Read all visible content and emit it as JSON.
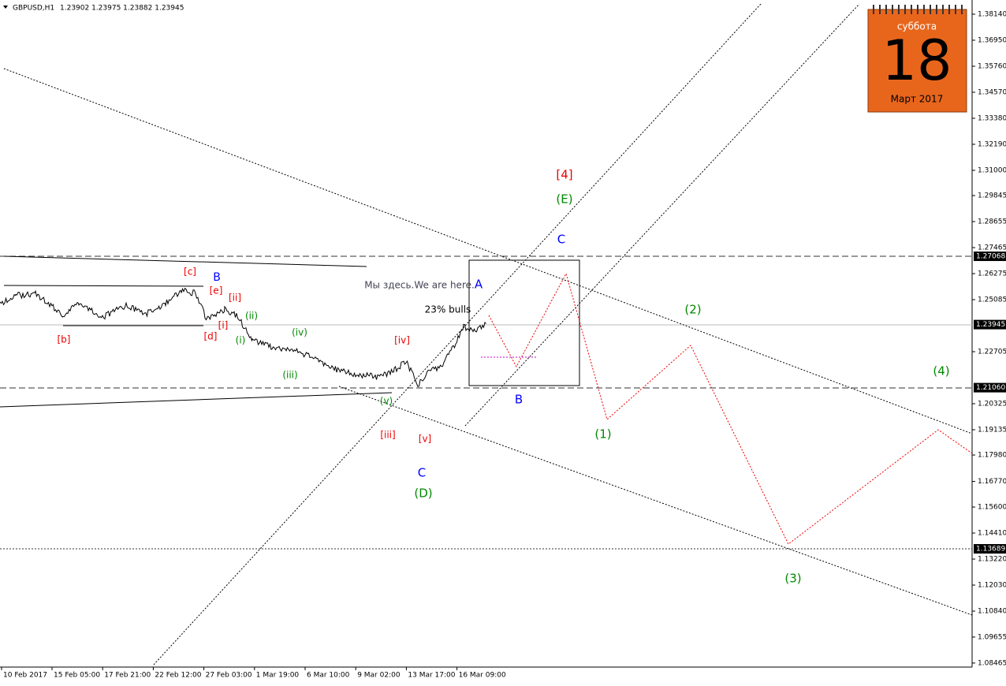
{
  "header": {
    "symbol": "GBPUSD,H1",
    "ohlc": "1.23902 1.23975 1.23882 1.23945"
  },
  "price_axis": {
    "labels": [
      "1.38140",
      "1.36950",
      "1.35760",
      "1.34570",
      "1.33380",
      "1.32190",
      "1.31000",
      "1.29845",
      "1.28655",
      "1.27465",
      "1.26275",
      "1.25085",
      "1.22705",
      "1.20325",
      "1.19135",
      "1.17980",
      "1.16770",
      "1.15600",
      "1.14410",
      "1.13220",
      "1.12030",
      "1.10840",
      "1.09655",
      "1.08465"
    ],
    "markers": [
      "1.27068",
      "1.23945",
      "1.21060",
      "1.13689"
    ]
  },
  "time_axis": {
    "labels": [
      "10 Feb 2017",
      "15 Feb 05:00",
      "17 Feb 21:00",
      "22 Feb 12:00",
      "27 Feb 03:00",
      "1 Mar 19:00",
      "6 Mar 10:00",
      "9 Mar 02:00",
      "13 Mar 17:00",
      "16 Mar 09:00"
    ]
  },
  "annotations": [
    "[c]",
    "B",
    "[e]",
    "[ii]",
    "[i]",
    "(ii)",
    "[b]",
    "[d]",
    "(i)",
    "(iv)",
    "(iii)",
    "[iv]",
    "(v)",
    "[iii]",
    "[v]",
    "C",
    "(D)",
    "[4]",
    "(E)",
    "C",
    "A",
    "Мы здесь.We are here.",
    "23% bulls",
    "B",
    "(1)",
    "(2)",
    "(4)",
    "(3)"
  ],
  "calendar": {
    "weekday": "суббота",
    "day": "18",
    "month": "Март 2017"
  }
}
